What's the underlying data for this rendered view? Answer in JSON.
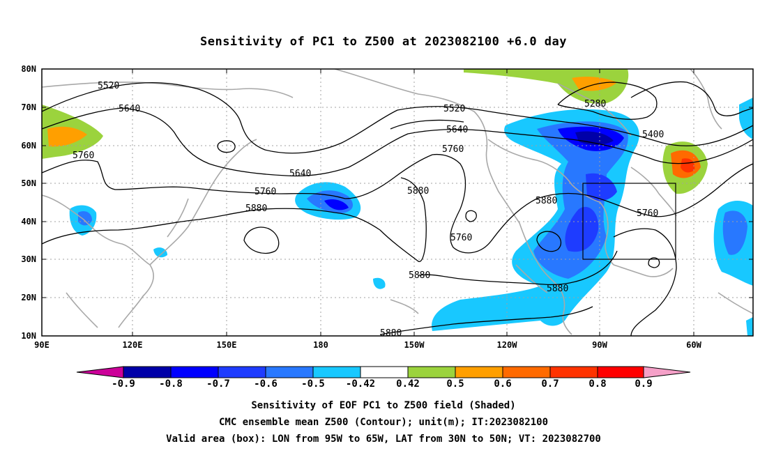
{
  "title": "Sensitivity of PC1 to Z500 at 2023082100 +6.0 day",
  "map": {
    "lat_labels": [
      "80N",
      "70N",
      "60N",
      "50N",
      "40N",
      "30N",
      "20N",
      "10N"
    ],
    "lon_labels": [
      "90E",
      "120E",
      "150E",
      "180",
      "150W",
      "120W",
      "90W",
      "60W"
    ],
    "extent": {
      "lon_min": 90,
      "lon_max": 325,
      "lat_min": 10,
      "lat_max": 80
    },
    "valid_box": {
      "lon_min": 265,
      "lon_max": 295,
      "lat_min": 30,
      "lat_max": 50
    },
    "contour_labels": [
      "5520",
      "5640",
      "5760",
      "5640",
      "5760",
      "5880",
      "5520",
      "5640",
      "5760",
      "5880",
      "5760",
      "5880",
      "5880",
      "5880",
      "5280",
      "5400",
      "5760",
      "5880"
    ],
    "colors": {
      "coastline": "#a8a8a8",
      "contour": "#000000",
      "grid": "#a0a0a0"
    }
  },
  "colorbar": {
    "labels": [
      "-0.9",
      "-0.8",
      "-0.7",
      "-0.6",
      "-0.5",
      "-0.42",
      "0.42",
      "0.5",
      "0.6",
      "0.7",
      "0.8",
      "0.9"
    ],
    "colors": [
      "#cc0099",
      "#0000a8",
      "#0000ff",
      "#1e3cff",
      "#2878ff",
      "#18c8ff",
      "#ffffff",
      "#9bd33d",
      "#ff9f00",
      "#ff6a00",
      "#ff3300",
      "#ff0000",
      "#f5a0c8"
    ]
  },
  "caption": {
    "line1": "Sensitivity of EOF PC1 to Z500 field (Shaded)",
    "line2": "CMC ensemble mean Z500 (Contour); unit(m); IT:2023082100",
    "line3": "Valid area (box): LON from 95W to 65W, LAT from 30N to 50N; VT: 2023082700"
  }
}
